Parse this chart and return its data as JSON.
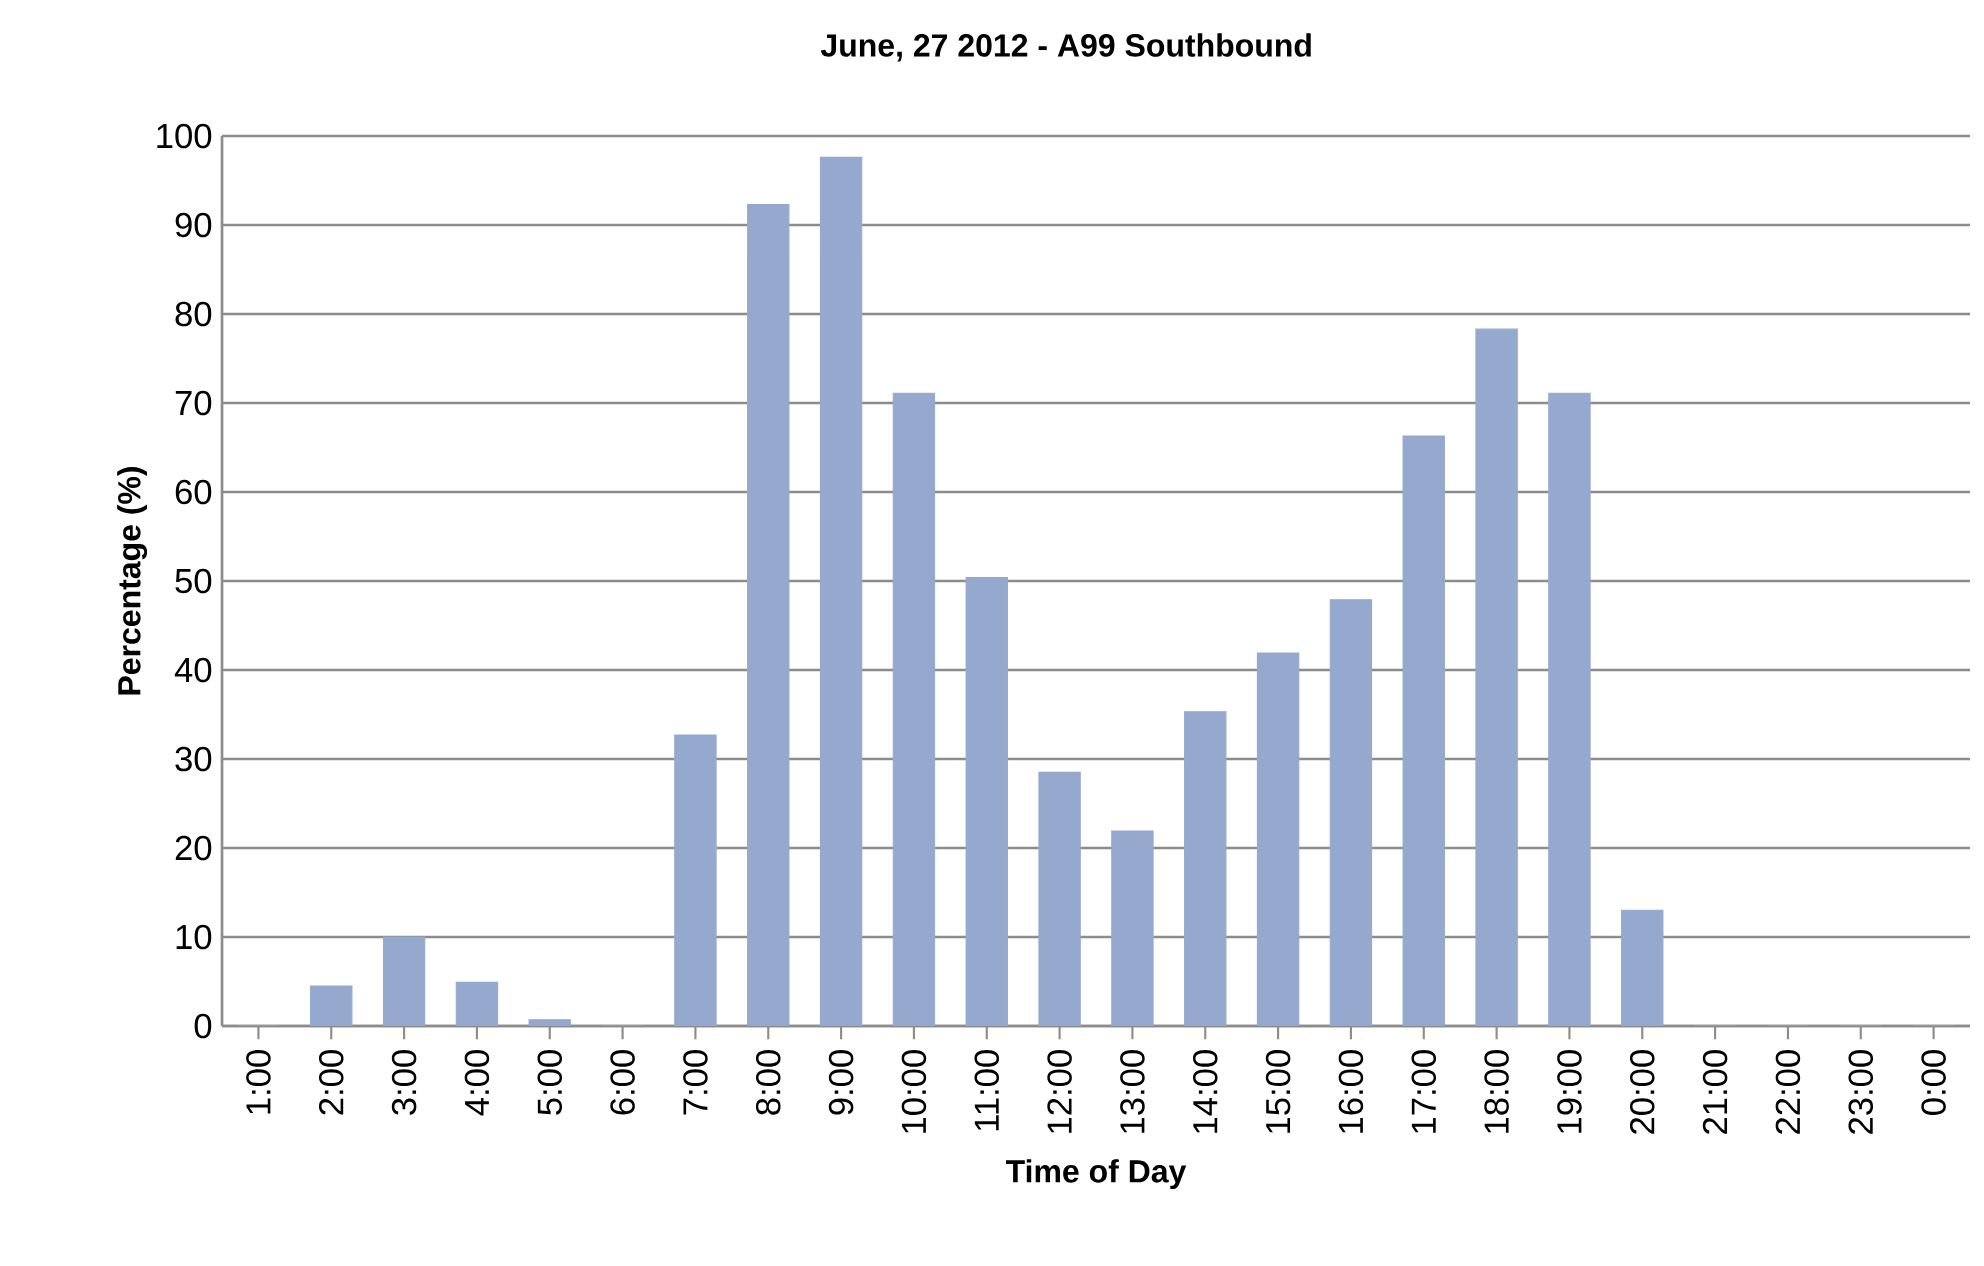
{
  "chart_data": {
    "type": "bar",
    "title": "June, 27 2012 - A99 Southbound",
    "xlabel": "Time of Day",
    "ylabel": "Percentage (%)",
    "categories": [
      "1:00",
      "2:00",
      "3:00",
      "4:00",
      "5:00",
      "6:00",
      "7:00",
      "8:00",
      "9:00",
      "10:00",
      "11:00",
      "12:00",
      "13:00",
      "14:00",
      "15:00",
      "16:00",
      "17:00",
      "18:00",
      "19:00",
      "20:00",
      "21:00",
      "22:00",
      "23:00",
      "0:00"
    ],
    "values": [
      0,
      4.5,
      10.0,
      4.9,
      0.7,
      0,
      32.7,
      92.3,
      97.6,
      71.1,
      50.4,
      28.5,
      21.9,
      35.3,
      41.9,
      47.9,
      66.3,
      78.3,
      71.1,
      13.0,
      0,
      0,
      0,
      0
    ],
    "color": "#95a9cf",
    "ylim": [
      0,
      100
    ],
    "yticks": [
      0,
      10,
      20,
      30,
      40,
      50,
      60,
      70,
      80,
      90,
      100
    ],
    "grid": "y"
  }
}
